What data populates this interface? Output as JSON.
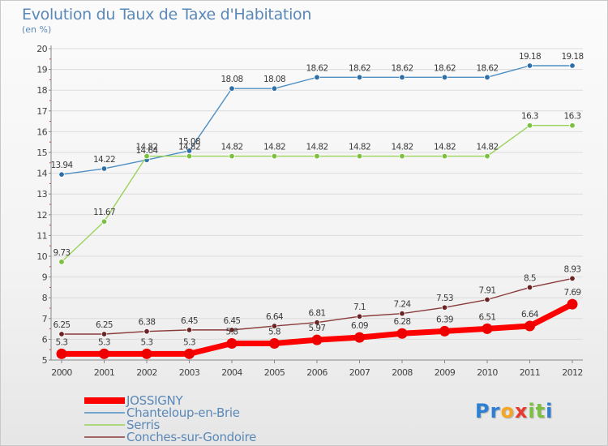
{
  "header": {
    "title": "Evolution du Taux de Taxe d'Habitation",
    "unit": "(en %)"
  },
  "brand": {
    "letters": [
      "P",
      "r",
      "o",
      "x",
      "i",
      "t",
      "i"
    ]
  },
  "chart_data": {
    "type": "line",
    "title": "Evolution du Taux de Taxe d'Habitation",
    "ylabel": "(en %)",
    "xlabel": "",
    "ylim": [
      5,
      20
    ],
    "yticks": [
      5,
      6,
      7,
      8,
      9,
      10,
      11,
      12,
      13,
      14,
      15,
      16,
      17,
      18,
      19,
      20
    ],
    "categories": [
      "2000",
      "2001",
      "2002",
      "2003",
      "2004",
      "2005",
      "2006",
      "2007",
      "2008",
      "2009",
      "2010",
      "2011",
      "2012"
    ],
    "legend_position": "bottom-left",
    "series": [
      {
        "name": "Chanteloup-en-Brie",
        "color": "#4f8fc3",
        "dot": "#2f6fa8",
        "values": [
          13.94,
          14.22,
          14.64,
          15.08,
          18.08,
          18.08,
          18.62,
          18.62,
          18.62,
          18.62,
          18.62,
          19.18,
          19.18
        ],
        "labels": [
          "13.94",
          "14.22",
          "14.64",
          "15.08",
          "18.08",
          "18.08",
          "18.62",
          "18.62",
          "18.62",
          "18.62",
          "18.62",
          "19.18",
          "19.18"
        ]
      },
      {
        "name": "Serris",
        "color": "#9ad35a",
        "dot": "#7cc040",
        "values": [
          9.73,
          11.67,
          14.82,
          14.82,
          14.82,
          14.82,
          14.82,
          14.82,
          14.82,
          14.82,
          14.82,
          16.3,
          16.3
        ],
        "labels": [
          "9.73",
          "11.67",
          "14.82",
          "14.82",
          "14.82",
          "14.82",
          "14.82",
          "14.82",
          "14.82",
          "14.82",
          "14.82",
          "16.3",
          "16.3"
        ]
      },
      {
        "name": "Conches-sur-Gondoire",
        "color": "#8a3a3a",
        "dot": "#6a2424",
        "values": [
          6.25,
          6.25,
          6.38,
          6.45,
          6.45,
          6.64,
          6.81,
          7.1,
          7.24,
          7.53,
          7.91,
          8.5,
          8.93
        ],
        "labels": [
          "6.25",
          "6.25",
          "6.38",
          "6.45",
          "6.45",
          "6.64",
          "6.81",
          "7.1",
          "7.24",
          "7.53",
          "7.91",
          "8.5",
          "8.93"
        ]
      },
      {
        "name": "JOSSIGNY",
        "color": "#ff0000",
        "dot": "#ee0000",
        "values": [
          5.3,
          5.3,
          5.3,
          5.3,
          5.8,
          5.8,
          5.97,
          6.09,
          6.28,
          6.39,
          6.51,
          6.64,
          7.69
        ],
        "labels": [
          "5.3",
          "5.3",
          "5.3",
          "5.3",
          "5.8",
          "5.8",
          "5.97",
          "6.09",
          "6.28",
          "6.39",
          "6.51",
          "6.64",
          "7.69"
        ]
      }
    ],
    "legend_order": [
      "JOSSIGNY",
      "Chanteloup-en-Brie",
      "Serris",
      "Conches-sur-Gondoire"
    ]
  }
}
